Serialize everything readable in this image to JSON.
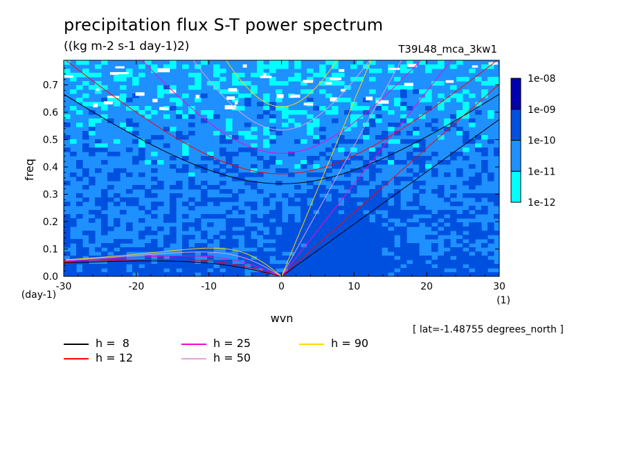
{
  "header": {
    "title": "precipitation flux S-T power spectrum",
    "units": "((kg m-2 s-1 day-1)2)",
    "run_id": "T39L48_mca_3kw1",
    "lat_info": "[ lat=-1.48755 degrees_north ]"
  },
  "chart_data": {
    "type": "heatmap",
    "title": "precipitation flux S-T power spectrum",
    "subtitle": "((kg m-2 s-1 day-1)2)",
    "xlabel": "wvn",
    "ylabel": "freq",
    "x_unit_label": "(1)",
    "y_unit_label": "(day-1)",
    "xlim": [
      -30,
      30
    ],
    "ylim": [
      0,
      0.79
    ],
    "x_ticks": [
      "-30",
      "-20",
      "-10",
      "0",
      "10",
      "20",
      "30"
    ],
    "y_ticks": [
      "0.0",
      "0.1",
      "0.2",
      "0.3",
      "0.4",
      "0.5",
      "0.6",
      "0.7"
    ],
    "colorbar": {
      "levels": [
        "1e-12",
        "1e-11",
        "1e-10",
        "1e-09",
        "1e-08"
      ],
      "colors": [
        "#00ffff",
        "#1e90ff",
        "#0050e0",
        "#0000b0",
        "#4b0082"
      ]
    },
    "dispersion_curves": [
      {
        "name": "h =  8",
        "h": 8,
        "color": "#000000"
      },
      {
        "name": "h = 12",
        "h": 12,
        "color": "#ff0000"
      },
      {
        "name": "h = 25",
        "h": 25,
        "color": "#ff00c8"
      },
      {
        "name": "h = 50",
        "h": 50,
        "color": "#e0a0e0"
      },
      {
        "name": "h = 90",
        "h": 90,
        "color": "#ffd700"
      }
    ],
    "grid": false
  }
}
